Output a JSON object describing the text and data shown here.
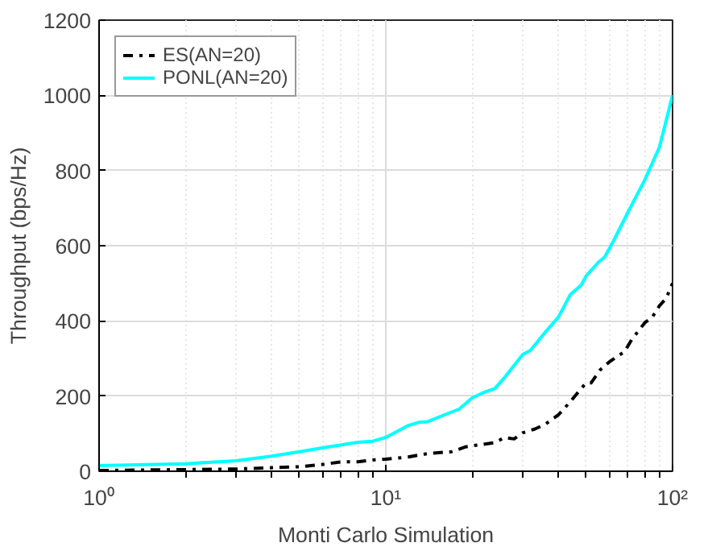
{
  "chart_data": {
    "type": "line",
    "xlabel": "Monti Carlo Simulation",
    "ylabel": "Throughput (bps/Hz)",
    "log": "x",
    "xlim": [
      1,
      100
    ],
    "xticks": [
      {
        "value": 1,
        "label": "10⁰"
      },
      {
        "value": 10,
        "label": "10¹"
      },
      {
        "value": 100,
        "label": "10²"
      }
    ],
    "ylim": [
      0,
      1200
    ],
    "yticks": [
      0,
      200,
      400,
      600,
      800,
      1000,
      1200
    ],
    "grid": true,
    "legend": "top left",
    "series": [
      {
        "name": "ES(AN=20)",
        "color": "#000000",
        "line_style": "dashdot",
        "x": [
          1,
          3,
          5,
          6,
          7,
          8,
          9,
          10,
          12,
          14,
          17,
          19,
          21,
          24,
          26,
          28,
          30,
          33,
          36,
          40,
          44,
          48,
          50,
          52,
          56,
          60,
          64,
          68,
          72,
          80,
          85,
          90,
          95,
          100
        ],
        "values": [
          2,
          6,
          12,
          18,
          25,
          25,
          30,
          32,
          38,
          47,
          52,
          65,
          70,
          76,
          90,
          86,
          102,
          112,
          125,
          150,
          185,
          220,
          235,
          235,
          270,
          290,
          305,
          318,
          350,
          395,
          410,
          440,
          460,
          500
        ]
      },
      {
        "name": "PONL(AN=20)",
        "color": "#00ffff",
        "line_style": "solid",
        "x": [
          1,
          2,
          3,
          4,
          5,
          6,
          7,
          8,
          9,
          10,
          12,
          13,
          14,
          16,
          18,
          20,
          22,
          24,
          26,
          30,
          32,
          36,
          40,
          44,
          48,
          50,
          55,
          58,
          62,
          70,
          80,
          90,
          100
        ],
        "values": [
          15,
          20,
          28,
          40,
          52,
          62,
          70,
          77,
          80,
          90,
          122,
          130,
          132,
          150,
          165,
          195,
          210,
          220,
          250,
          310,
          322,
          370,
          410,
          470,
          495,
          520,
          555,
          570,
          610,
          690,
          775,
          862,
          1000
        ]
      }
    ]
  }
}
